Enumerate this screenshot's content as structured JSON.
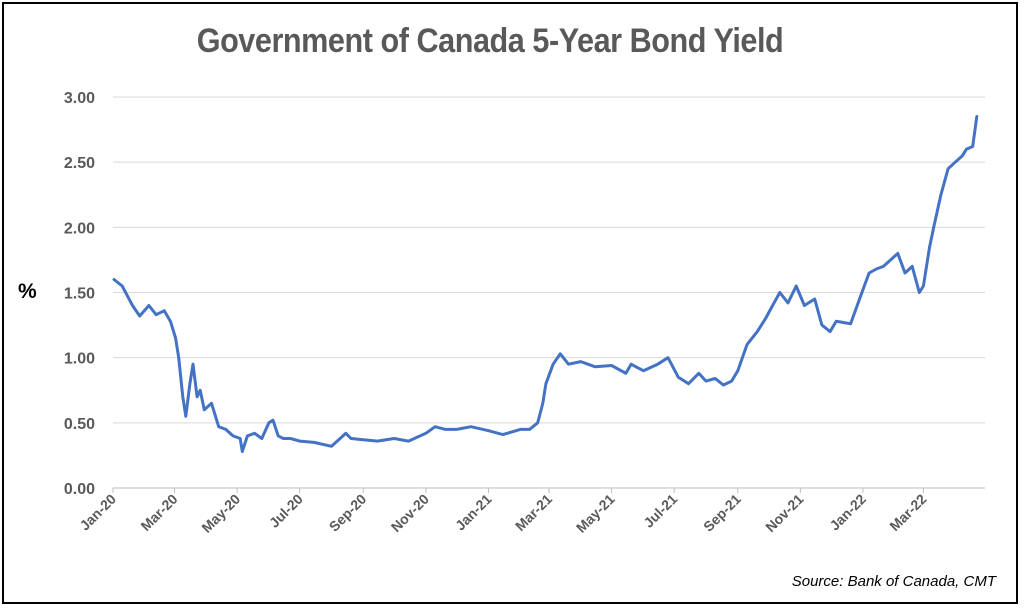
{
  "chart_data": {
    "type": "line",
    "title": "Government of Canada 5-Year Bond Yield",
    "ylabel": "%",
    "xlabel": "",
    "source": "Source: Bank of Canada, CMT",
    "ylim": [
      0,
      3
    ],
    "y_ticks": [
      "0.00",
      "0.50",
      "1.00",
      "1.50",
      "2.00",
      "2.50",
      "3.00"
    ],
    "x_tick_labels": [
      "Jan-20",
      "Mar-20",
      "May-20",
      "Jul-20",
      "Sep-20",
      "Nov-20",
      "Jan-21",
      "Mar-21",
      "May-21",
      "Jul-21",
      "Sep-21",
      "Nov-21",
      "Jan-22",
      "Mar-22"
    ],
    "grid": true,
    "legend": "none",
    "line_color": "#4472c4",
    "series": [
      {
        "x": [
          "2020-01-02",
          "2020-01-10",
          "2020-01-20",
          "2020-01-27",
          "2020-02-05",
          "2020-02-12",
          "2020-02-20",
          "2020-02-26",
          "2020-03-02",
          "2020-03-05",
          "2020-03-09",
          "2020-03-12",
          "2020-03-16",
          "2020-03-19",
          "2020-03-23",
          "2020-03-26",
          "2020-03-30",
          "2020-04-06",
          "2020-04-13",
          "2020-04-20",
          "2020-04-27",
          "2020-05-04",
          "2020-05-06",
          "2020-05-11",
          "2020-05-18",
          "2020-05-25",
          "2020-06-01",
          "2020-06-05",
          "2020-06-10",
          "2020-06-15",
          "2020-06-22",
          "2020-07-01",
          "2020-07-15",
          "2020-08-01",
          "2020-08-15",
          "2020-08-20",
          "2020-09-01",
          "2020-09-15",
          "2020-10-01",
          "2020-10-15",
          "2020-11-01",
          "2020-11-10",
          "2020-11-20",
          "2020-12-01",
          "2020-12-15",
          "2021-01-01",
          "2021-01-15",
          "2021-02-01",
          "2021-02-10",
          "2021-02-18",
          "2021-02-23",
          "2021-02-26",
          "2021-03-05",
          "2021-03-12",
          "2021-03-20",
          "2021-04-01",
          "2021-04-15",
          "2021-05-01",
          "2021-05-15",
          "2021-05-20",
          "2021-06-01",
          "2021-06-15",
          "2021-06-25",
          "2021-07-05",
          "2021-07-15",
          "2021-07-25",
          "2021-08-01",
          "2021-08-10",
          "2021-08-18",
          "2021-08-26",
          "2021-09-01",
          "2021-09-10",
          "2021-09-20",
          "2021-09-28",
          "2021-10-05",
          "2021-10-12",
          "2021-10-20",
          "2021-10-28",
          "2021-11-05",
          "2021-11-15",
          "2021-11-22",
          "2021-11-30",
          "2021-12-06",
          "2021-12-13",
          "2021-12-20",
          "2021-12-31",
          "2022-01-07",
          "2022-01-14",
          "2022-01-21",
          "2022-01-28",
          "2022-02-04",
          "2022-02-11",
          "2022-02-18",
          "2022-02-25",
          "2022-03-01",
          "2022-03-07",
          "2022-03-11",
          "2022-03-18",
          "2022-03-25",
          "2022-04-01",
          "2022-04-08",
          "2022-04-12",
          "2022-04-18",
          "2022-04-22"
        ],
        "values": [
          1.6,
          1.55,
          1.4,
          1.32,
          1.4,
          1.33,
          1.36,
          1.28,
          1.15,
          1.0,
          0.7,
          0.55,
          0.8,
          0.95,
          0.7,
          0.75,
          0.6,
          0.65,
          0.47,
          0.45,
          0.4,
          0.38,
          0.28,
          0.4,
          0.42,
          0.38,
          0.5,
          0.52,
          0.4,
          0.38,
          0.38,
          0.36,
          0.35,
          0.32,
          0.42,
          0.38,
          0.37,
          0.36,
          0.38,
          0.36,
          0.42,
          0.47,
          0.45,
          0.45,
          0.47,
          0.44,
          0.41,
          0.45,
          0.45,
          0.5,
          0.65,
          0.8,
          0.95,
          1.03,
          0.95,
          0.97,
          0.93,
          0.94,
          0.88,
          0.95,
          0.9,
          0.95,
          1.0,
          0.85,
          0.8,
          0.88,
          0.82,
          0.84,
          0.79,
          0.82,
          0.9,
          1.1,
          1.2,
          1.3,
          1.4,
          1.5,
          1.42,
          1.55,
          1.4,
          1.45,
          1.25,
          1.2,
          1.28,
          1.27,
          1.26,
          1.5,
          1.65,
          1.68,
          1.7,
          1.75,
          1.8,
          1.65,
          1.7,
          1.5,
          1.55,
          1.85,
          2.0,
          2.25,
          2.45,
          2.5,
          2.55,
          2.6,
          2.62,
          2.85
        ]
      }
    ]
  }
}
